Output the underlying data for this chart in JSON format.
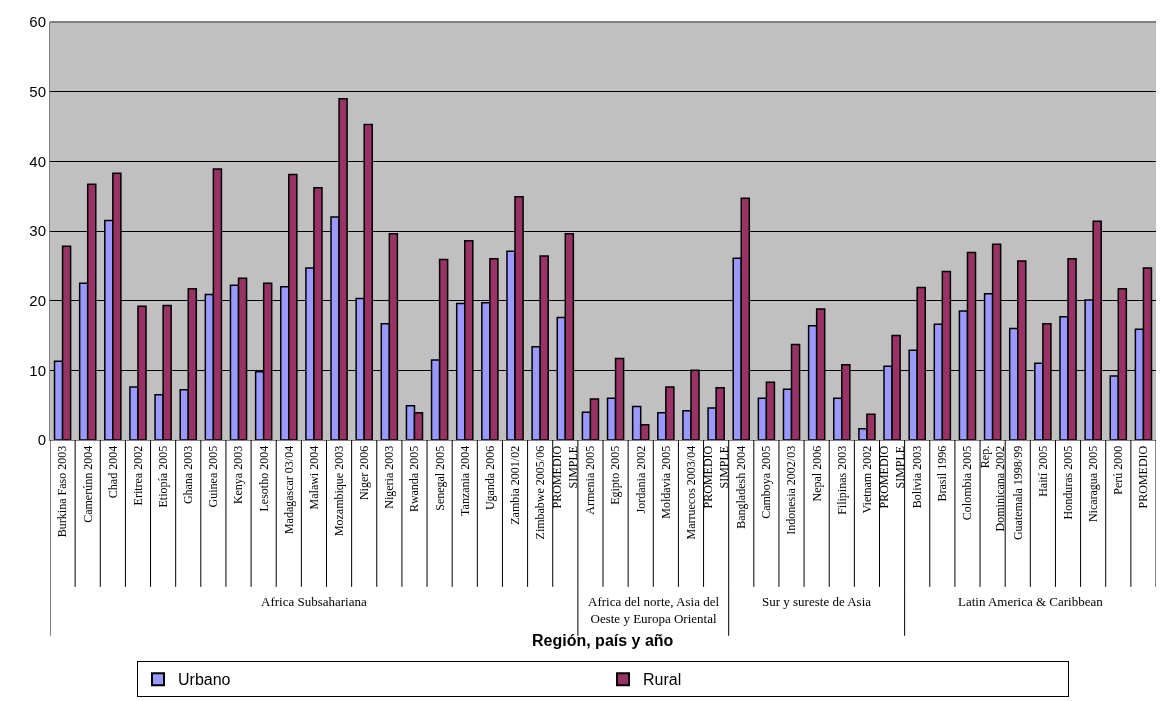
{
  "chart_data": {
    "type": "bar",
    "categories": [
      "Burkina Faso 2003",
      "Camerúnn 2004",
      "Chad 2004",
      "Eritrea 2002",
      "Etiopía 2005",
      "Ghana 2003",
      "Guinea 2005",
      "Kenya 2003",
      "Lesotho 2004",
      "Madagascar 03/04",
      "Malawi 2004",
      "Mozambique 2003",
      "Niger 2006",
      "Nigeria 2003",
      "Rwanda 2005",
      "Senegal 2005",
      "Tanzania 2004",
      "Uganda 2006",
      "Zambia 2001/02",
      "Zimbabwe 2005/06",
      "PROMEDIO\nSIMPLE",
      "Armenia 2005",
      "Egipto 2005",
      "Jordania 2002",
      "Moldavia 2005",
      "Marruecos 2003/04",
      "PROMEDIO\nSIMPLE",
      "Bangladesh 2004",
      "Camboya 2005",
      "Indonesia 2002/03",
      "Nepal 2006",
      "Filipinas 2003",
      "Vietnam 2002",
      "PROMEDIO\nSIMPLE",
      "Bolivia 2003",
      "Brasil 1996",
      "Colombia 2005",
      "Rep.\nDominicana 2002",
      "Guatemala 1998/99",
      "Haití 2005",
      "Honduras 2005",
      "Nicaragua 2005",
      "Perú 2000",
      "PROMEDIO"
    ],
    "series": [
      {
        "name": "Urbano",
        "color": "#9999ff",
        "values": [
          11.3,
          22.5,
          31.5,
          7.6,
          6.5,
          7.2,
          20.9,
          22.2,
          9.8,
          22.0,
          24.7,
          32.0,
          20.3,
          16.7,
          4.9,
          11.5,
          19.6,
          19.7,
          27.1,
          13.4,
          17.6,
          4.0,
          6.0,
          4.8,
          3.9,
          4.2,
          4.6,
          26.1,
          6.0,
          7.3,
          16.4,
          6.0,
          1.6,
          10.6,
          12.9,
          16.6,
          18.5,
          21.0,
          16.0,
          11.0,
          17.7,
          20.1,
          9.2,
          15.9
        ]
      },
      {
        "name": "Rural",
        "color": "#993366",
        "values": [
          27.8,
          36.7,
          38.3,
          19.2,
          19.3,
          21.7,
          38.9,
          23.2,
          22.5,
          38.1,
          36.2,
          49.0,
          45.3,
          29.6,
          3.9,
          25.9,
          28.6,
          26.0,
          34.9,
          26.4,
          29.6,
          5.9,
          11.7,
          2.2,
          7.6,
          10.0,
          7.5,
          34.7,
          8.3,
          13.7,
          18.8,
          10.8,
          3.7,
          15.0,
          21.9,
          24.2,
          26.9,
          28.1,
          25.7,
          16.7,
          26.0,
          31.4,
          21.7,
          24.7
        ]
      }
    ],
    "annotations": [
      "Africa Subsahariana",
      "Africa del norte, Asia del\nOeste y Europa Oriental",
      "Sur y sureste de Asia",
      "Latin America & Caribbean",
      "Región, país y año"
    ],
    "ylim": [
      0,
      60
    ],
    "yticks": [
      0,
      10,
      20,
      30,
      40,
      50,
      60
    ],
    "grid": "y",
    "legend": "bottom"
  }
}
